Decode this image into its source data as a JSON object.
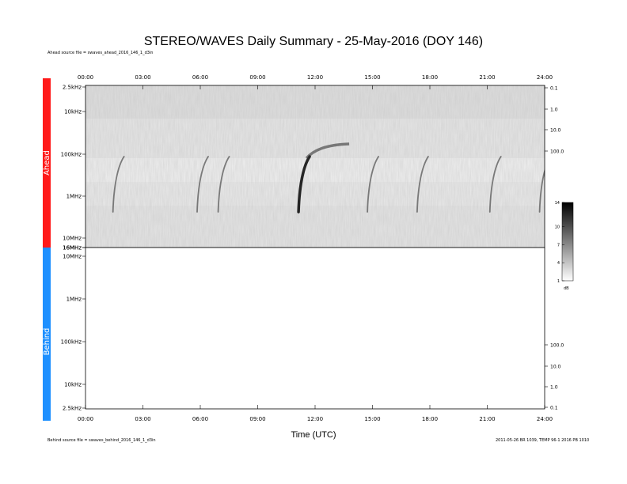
{
  "title": "STEREO/WAVES Daily Summary - 25-May-2016 (DOY 146)",
  "ahead_source": "Ahead source file = swaves_ahead_2016_146_1_d3in",
  "behind_source": "Behind source file = swaves_behind_2016_146_1_d3in",
  "footer_right": "2011-05-26 BR 1039, TEMP 96-1 2016 PB 1010",
  "chart_data": [
    {
      "type": "heatmap",
      "panel": "Ahead",
      "xlabel": "Time (UTC)",
      "x_ticks": [
        "00:00",
        "03:00",
        "06:00",
        "09:00",
        "12:00",
        "15:00",
        "18:00",
        "21:00",
        "24:00"
      ],
      "y_ticks_left": [
        "2.5kHz",
        "10kHz",
        "100kHz",
        "1MHz",
        "10MHz",
        "16MHz"
      ],
      "y_ticks_right": [
        "0.1",
        "1.0",
        "10.0",
        "100.0"
      ],
      "colorbar": {
        "ticks": [
          "14",
          "10",
          "7",
          "4",
          "1"
        ],
        "unit": "dB",
        "range": [
          1,
          14
        ]
      },
      "bursts": [
        {
          "start_hour": 1.6,
          "label": "type III"
        },
        {
          "start_hour": 6.0,
          "label": "type III"
        },
        {
          "start_hour": 7.1,
          "label": "type III"
        },
        {
          "start_hour": 11.3,
          "label": "type III"
        },
        {
          "start_hour": 14.9,
          "label": "type III"
        },
        {
          "start_hour": 17.5,
          "label": "type III"
        },
        {
          "start_hour": 21.3,
          "label": "type III"
        },
        {
          "start_hour": 23.9,
          "label": "type III"
        }
      ],
      "side_color": "#ff1a1a"
    },
    {
      "type": "heatmap",
      "panel": "Behind",
      "x_ticks": [
        "00:00",
        "03:00",
        "06:00",
        "09:00",
        "12:00",
        "15:00",
        "18:00",
        "21:00",
        "24:00"
      ],
      "y_ticks_left": [
        "16MHz",
        "10MHz",
        "1MHz",
        "100kHz",
        "10kHz",
        "2.5kHz"
      ],
      "y_ticks_right": [
        "100.0",
        "10.0",
        "1.0",
        "0.1"
      ],
      "side_color": "#1e90ff"
    }
  ]
}
